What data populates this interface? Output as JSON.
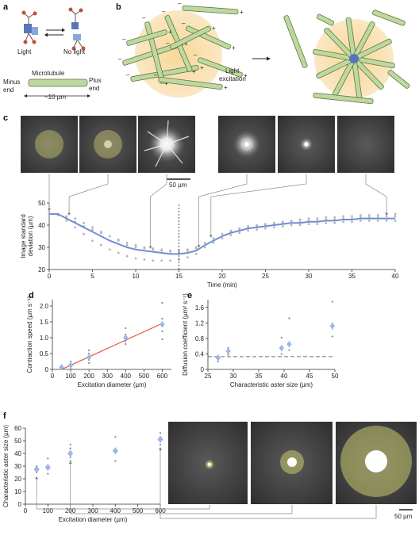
{
  "panel_labels": {
    "a": "a",
    "b": "b",
    "c": "c",
    "d": "d",
    "e": "e",
    "f": "f"
  },
  "panel_a": {
    "light": "Light",
    "no_light": "No light",
    "microtubule": "Microtubule",
    "minus_end": "Minus\nend",
    "plus_end": "Plus\nend",
    "length": "~10 µm"
  },
  "panel_b": {
    "light_excitation": "Light\nexcitation",
    "plus": "+",
    "minus": "–"
  },
  "panel_c": {
    "scale_bar": "50 µm"
  },
  "colors": {
    "series_blue": "#6f8fd6",
    "gray_points": "#b5b5b5",
    "fit_red": "#e0533a",
    "diamond": "#9db6e8",
    "glow": "#f6d9a0",
    "mt_green": "#bfd7a0"
  },
  "chart_data": [
    {
      "id": "c",
      "type": "line",
      "xlabel": "Time (min)",
      "ylabel": "Image standard\ndeviation (µm)",
      "xlim": [
        0,
        40
      ],
      "ylim": [
        20,
        50
      ],
      "xticks": [
        0,
        5,
        10,
        15,
        20,
        25,
        30,
        35,
        40
      ],
      "yticks": [
        20,
        30,
        40,
        50
      ],
      "dashed_x": 15,
      "marker_times": [
        0,
        2.3,
        11.7,
        17.3,
        18.7,
        39
      ],
      "mean": {
        "x": [
          0,
          1,
          2,
          3,
          4,
          5,
          6,
          7,
          8,
          9,
          10,
          11,
          12,
          13,
          14,
          15,
          16,
          17,
          18,
          19,
          20,
          21,
          22,
          23,
          24,
          25,
          26,
          27,
          28,
          29,
          30,
          31,
          32,
          33,
          34,
          35,
          36,
          37,
          38,
          39,
          40
        ],
        "y": [
          45,
          45,
          43,
          41,
          39,
          37,
          35,
          33,
          31.5,
          30,
          29,
          28.5,
          28,
          27.5,
          27,
          27,
          27.5,
          28.5,
          31,
          33,
          35,
          36.5,
          37.5,
          38.5,
          39,
          39.5,
          40,
          40.5,
          41,
          41,
          41.5,
          41.5,
          42,
          42,
          42.5,
          42.5,
          43,
          43,
          43,
          43,
          43
        ]
      },
      "replicates": [
        [
          45,
          45,
          44,
          43,
          41,
          39,
          37,
          35,
          33,
          31,
          30,
          29.5,
          29,
          28.5,
          28,
          28,
          28.5,
          29.5,
          32,
          34,
          36,
          37.5,
          38.5,
          39.5,
          40,
          40.5,
          41,
          41.5,
          42,
          42.5,
          43,
          43,
          43.5,
          43.5,
          44,
          44,
          44.5,
          44.5,
          44.5,
          45,
          45
        ],
        [
          45,
          44.5,
          42,
          39,
          36,
          33,
          31,
          29,
          27.5,
          26,
          25,
          24.5,
          24,
          24,
          24,
          24.5,
          25.5,
          27,
          30,
          32,
          34,
          35.5,
          36.5,
          37.5,
          38,
          38.5,
          39,
          39.5,
          40,
          40,
          40.5,
          40.5,
          41,
          41,
          41.5,
          41.5,
          42,
          42,
          42,
          42,
          42
        ],
        [
          45,
          45,
          43.5,
          41.5,
          39.5,
          38,
          36.5,
          35,
          33.5,
          32,
          31,
          30,
          29.5,
          29,
          28.5,
          28.5,
          29,
          30,
          32,
          34,
          36,
          37,
          38,
          39,
          39.5,
          40,
          40.5,
          41,
          41.5,
          41.5,
          42,
          42,
          42.5,
          42.5,
          43,
          43,
          43.5,
          43.5,
          43.5,
          44,
          44
        ]
      ]
    },
    {
      "id": "d",
      "type": "scatter",
      "xlabel": "Excitation diameter (µm)",
      "ylabel": "Contraction speed (µm s⁻¹)",
      "xlim": [
        0,
        650
      ],
      "ylim": [
        0,
        2.2
      ],
      "xticks": [
        0,
        100,
        200,
        300,
        400,
        500,
        600
      ],
      "yticks": [
        0,
        0.5,
        1.0,
        1.5,
        2.0
      ],
      "ytick_labels": [
        "0",
        "0.5",
        "1.0",
        "1.5",
        "2.0"
      ],
      "mean_points": [
        {
          "x": 50,
          "y": 0.07,
          "err": 0.06
        },
        {
          "x": 100,
          "y": 0.13,
          "err": 0.06
        },
        {
          "x": 200,
          "y": 0.38,
          "err": 0.08
        },
        {
          "x": 400,
          "y": 1.0,
          "err": 0.08
        },
        {
          "x": 600,
          "y": 1.42,
          "err": 0.1
        }
      ],
      "replicates": [
        {
          "x": 50,
          "y": [
            0.02,
            0.05,
            0.1
          ]
        },
        {
          "x": 100,
          "y": [
            0.05,
            0.15,
            0.25
          ]
        },
        {
          "x": 200,
          "y": [
            0.2,
            0.3,
            0.5,
            0.6
          ]
        },
        {
          "x": 400,
          "y": [
            0.8,
            0.9,
            1.1,
            1.3
          ]
        },
        {
          "x": 600,
          "y": [
            0.95,
            1.2,
            1.6,
            2.1
          ]
        }
      ],
      "fit": {
        "x": [
          50,
          600
        ],
        "y": [
          0.0,
          1.45
        ]
      }
    },
    {
      "id": "e",
      "type": "scatter",
      "xlabel": "Characteristic aster size (µm)",
      "ylabel": "Diffusion coefficient (µm² s⁻¹)",
      "xlim": [
        25,
        50
      ],
      "ylim": [
        0,
        1.8
      ],
      "xticks": [
        25,
        30,
        35,
        40,
        45,
        50
      ],
      "yticks": [
        0,
        0.4,
        0.8,
        1.2,
        1.6
      ],
      "ytick_labels": [
        "0",
        "0.4",
        "0.8",
        "1.2",
        "1.6"
      ],
      "dashed_y": 0.33,
      "mean_points": [
        {
          "x": 27,
          "y": 0.3,
          "err": 0.06
        },
        {
          "x": 29,
          "y": 0.47,
          "err": 0.07
        },
        {
          "x": 39.5,
          "y": 0.55,
          "err": 0.08
        },
        {
          "x": 41,
          "y": 0.65,
          "err": 0.08
        },
        {
          "x": 49.5,
          "y": 1.12,
          "err": 0.1
        }
      ],
      "replicates": [
        {
          "x": 27,
          "y": [
            0.2,
            0.35
          ]
        },
        {
          "x": 29,
          "y": [
            0.38,
            0.55
          ]
        },
        {
          "x": 39.5,
          "y": [
            0.4,
            0.82
          ]
        },
        {
          "x": 41,
          "y": [
            0.5,
            1.32
          ]
        },
        {
          "x": 49.5,
          "y": [
            0.85,
            1.75
          ]
        }
      ]
    },
    {
      "id": "f",
      "type": "scatter",
      "xlabel": "Excitation diameter (µm)",
      "ylabel": "Characteristic aster size (µm)",
      "xlim": [
        0,
        600
      ],
      "ylim": [
        0,
        60
      ],
      "xticks": [
        0,
        100,
        200,
        300,
        400,
        500,
        600
      ],
      "yticks": [
        0,
        10,
        20,
        30,
        40,
        50,
        60
      ],
      "mean_points": [
        {
          "x": 50,
          "y": 27.5,
          "err": 2
        },
        {
          "x": 100,
          "y": 29,
          "err": 2
        },
        {
          "x": 200,
          "y": 40,
          "err": 2.5
        },
        {
          "x": 400,
          "y": 42,
          "err": 2.5
        },
        {
          "x": 600,
          "y": 51,
          "err": 2.5
        }
      ],
      "replicates": [
        {
          "x": 50,
          "y": [
            25,
            30
          ]
        },
        {
          "x": 100,
          "y": [
            24,
            36
          ]
        },
        {
          "x": 200,
          "y": [
            34,
            37,
            44,
            47
          ]
        },
        {
          "x": 400,
          "y": [
            34,
            53
          ]
        },
        {
          "x": 600,
          "y": [
            43,
            47,
            53,
            56
          ]
        }
      ],
      "marker_x": [
        50,
        200,
        600
      ]
    }
  ]
}
